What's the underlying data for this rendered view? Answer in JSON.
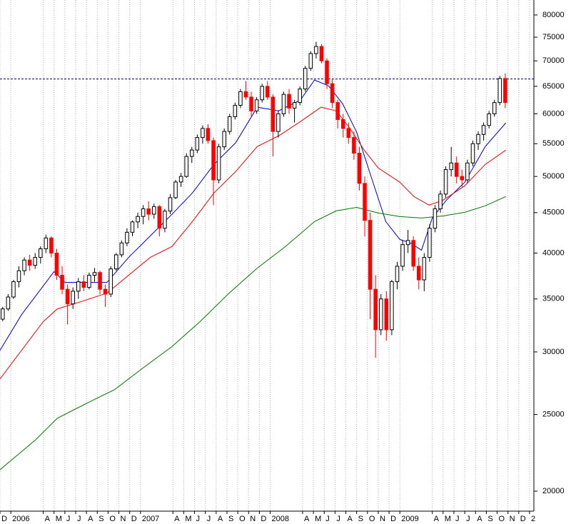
{
  "chart_data": {
    "type": "candlestick",
    "y_scale": "log",
    "grid": true,
    "up_color": "#ffffff",
    "down_color": "#ff0000",
    "hline": 66400,
    "hline_color": "#000080",
    "xlim": [
      0,
      49.4
    ],
    "ylim": [
      18870,
      83570
    ],
    "xticks": [
      {
        "value": 0,
        "label": "D"
      },
      {
        "value": 1,
        "label": "2006"
      },
      {
        "value": 4,
        "label": "A"
      },
      {
        "value": 5,
        "label": "M"
      },
      {
        "value": 6,
        "label": "J"
      },
      {
        "value": 7,
        "label": "J"
      },
      {
        "value": 8,
        "label": "A"
      },
      {
        "value": 9,
        "label": "S"
      },
      {
        "value": 10,
        "label": "O"
      },
      {
        "value": 11,
        "label": "N"
      },
      {
        "value": 12,
        "label": "D"
      },
      {
        "value": 13,
        "label": "2007"
      },
      {
        "value": 16,
        "label": "A"
      },
      {
        "value": 17,
        "label": "M"
      },
      {
        "value": 18,
        "label": "J"
      },
      {
        "value": 19,
        "label": "J"
      },
      {
        "value": 20,
        "label": "A"
      },
      {
        "value": 21,
        "label": "S"
      },
      {
        "value": 22,
        "label": "O"
      },
      {
        "value": 23,
        "label": "N"
      },
      {
        "value": 24,
        "label": "D"
      },
      {
        "value": 25,
        "label": "2008"
      },
      {
        "value": 28,
        "label": "A"
      },
      {
        "value": 29,
        "label": "M"
      },
      {
        "value": 30,
        "label": "J"
      },
      {
        "value": 31,
        "label": "J"
      },
      {
        "value": 32,
        "label": "A"
      },
      {
        "value": 33,
        "label": "S"
      },
      {
        "value": 34,
        "label": "O"
      },
      {
        "value": 35,
        "label": "N"
      },
      {
        "value": 36,
        "label": "D"
      },
      {
        "value": 37,
        "label": "2009"
      },
      {
        "value": 40,
        "label": "A"
      },
      {
        "value": 41,
        "label": "M"
      },
      {
        "value": 42,
        "label": "J"
      },
      {
        "value": 43,
        "label": "J"
      },
      {
        "value": 44,
        "label": "A"
      },
      {
        "value": 45,
        "label": "S"
      },
      {
        "value": 46,
        "label": "O"
      },
      {
        "value": 47,
        "label": "N"
      },
      {
        "value": 48,
        "label": "D"
      },
      {
        "value": 49,
        "label": "2"
      }
    ],
    "yticks": [
      20000,
      25000,
      30000,
      35000,
      40000,
      45000,
      50000,
      55000,
      60000,
      65000,
      70000,
      75000,
      80000
    ],
    "candles": {
      "x": [
        0.25,
        0.75,
        1.25,
        1.75,
        2.25,
        2.75,
        3.25,
        3.75,
        4.25,
        4.75,
        5.25,
        5.75,
        6.25,
        6.75,
        7.25,
        7.75,
        8.25,
        8.75,
        9.25,
        9.75,
        10.25,
        10.75,
        11.25,
        11.75,
        12.25,
        12.75,
        13.25,
        13.75,
        14.25,
        14.75,
        15.25,
        15.75,
        16.25,
        16.75,
        17.25,
        17.75,
        18.25,
        18.75,
        19.25,
        19.75,
        20.25,
        20.75,
        21.25,
        21.75,
        22.25,
        22.75,
        23.25,
        23.75,
        24.25,
        24.75,
        25.25,
        25.75,
        26.25,
        26.75,
        27.25,
        27.75,
        28.25,
        28.75,
        29.25,
        29.75,
        30.25,
        30.75,
        31.25,
        31.75,
        32.25,
        32.75,
        33.25,
        33.75,
        34.25,
        34.75,
        35.25,
        35.75,
        36.25,
        36.75,
        37.25,
        37.75,
        38.25,
        38.75,
        39.25,
        39.75,
        40.25,
        40.75,
        41.25,
        41.75,
        42.25,
        42.75,
        43.25,
        43.75,
        44.25,
        44.75,
        45.25,
        45.75,
        46.25,
        46.75
      ],
      "open": [
        33000,
        34000,
        35200,
        36800,
        38000,
        39200,
        38600,
        39500,
        40500,
        41800,
        40000,
        37500,
        36000,
        34500,
        35800,
        36800,
        36200,
        37500,
        37800,
        36000,
        35500,
        38200,
        39800,
        41200,
        42500,
        43800,
        44500,
        45500,
        44800,
        45800,
        43000,
        45200,
        47000,
        49200,
        50000,
        53000,
        54000,
        56000,
        57500,
        55500,
        49500,
        54500,
        57000,
        59500,
        61500,
        64000,
        63000,
        60500,
        62500,
        65000,
        63000,
        57000,
        60000,
        63500,
        61000,
        62000,
        64500,
        68500,
        71500,
        73000,
        70000,
        65500,
        62000,
        59000,
        57500,
        56000,
        53500,
        49000,
        44000,
        36000,
        32000,
        35000,
        32000,
        36800,
        38500,
        41000,
        41500,
        38500,
        37000,
        39500,
        43000,
        45500,
        47500,
        51000,
        52000,
        50000,
        49500,
        52000,
        55000,
        56500,
        58000,
        60000,
        62000,
        66500
      ],
      "high": [
        34200,
        35500,
        37000,
        38500,
        39500,
        39800,
        40000,
        40800,
        42200,
        42000,
        40500,
        38500,
        36500,
        36200,
        37200,
        37500,
        37800,
        38300,
        38000,
        36500,
        38500,
        40000,
        41500,
        43000,
        44000,
        45000,
        46000,
        46500,
        46200,
        46000,
        45500,
        47500,
        49500,
        50500,
        53500,
        54500,
        56500,
        58000,
        58200,
        56000,
        55000,
        57500,
        60000,
        62000,
        64500,
        66000,
        64000,
        63000,
        65500,
        66000,
        63500,
        60500,
        64000,
        64500,
        62500,
        65000,
        69000,
        72000,
        74000,
        73500,
        70500,
        66500,
        62500,
        60000,
        58500,
        57000,
        54500,
        50000,
        45000,
        37500,
        35500,
        35800,
        37000,
        39000,
        41500,
        42800,
        42000,
        39500,
        40000,
        43500,
        46000,
        48000,
        51500,
        54500,
        53000,
        51000,
        52500,
        55500,
        57000,
        58500,
        60500,
        62500,
        67000,
        67500
      ],
      "low": [
        32800,
        33800,
        35000,
        36200,
        37500,
        38000,
        38200,
        38800,
        40000,
        39500,
        37000,
        35500,
        32500,
        34000,
        35000,
        35800,
        36000,
        36800,
        35500,
        34200,
        35200,
        38000,
        39500,
        40800,
        42000,
        43000,
        43500,
        44000,
        44200,
        42000,
        42500,
        44800,
        46800,
        48500,
        49800,
        52000,
        53500,
        55000,
        55000,
        46000,
        49000,
        54000,
        56500,
        59000,
        61000,
        62500,
        59500,
        60000,
        62000,
        62500,
        53000,
        56000,
        59500,
        60000,
        58500,
        61500,
        64000,
        68000,
        70500,
        69500,
        64500,
        61000,
        57500,
        56000,
        55000,
        52500,
        48000,
        42000,
        33000,
        29500,
        31500,
        31000,
        31500,
        36000,
        38000,
        40000,
        38000,
        36000,
        35800,
        39000,
        42500,
        45000,
        47000,
        50000,
        49000,
        48500,
        49000,
        51500,
        54000,
        55500,
        57500,
        59500,
        61500,
        61000
      ],
      "close": [
        34000,
        35200,
        36800,
        38000,
        39200,
        38600,
        39500,
        40500,
        41800,
        40000,
        37500,
        36000,
        34500,
        35800,
        36800,
        36200,
        37500,
        37800,
        36000,
        35500,
        38200,
        39800,
        41200,
        42500,
        43800,
        44500,
        45500,
        44800,
        45800,
        43000,
        45200,
        47000,
        49200,
        50000,
        53000,
        54000,
        56000,
        57500,
        55500,
        49500,
        54500,
        57000,
        59500,
        61500,
        64000,
        63000,
        60500,
        62500,
        65000,
        63000,
        57000,
        60000,
        63500,
        61000,
        62000,
        64500,
        68500,
        71500,
        73000,
        70000,
        65500,
        62000,
        59000,
        57500,
        56000,
        53500,
        49000,
        44000,
        36000,
        32000,
        35000,
        32000,
        36800,
        38500,
        41000,
        41500,
        38500,
        37000,
        39500,
        43000,
        45500,
        47500,
        51000,
        52000,
        50000,
        49500,
        52000,
        55000,
        56500,
        58000,
        60000,
        62000,
        66500,
        62000
      ]
    },
    "lines": [
      {
        "color": "#0000cc",
        "x": [
          0,
          2,
          4,
          5,
          6,
          7.9,
          9.9,
          11.9,
          13.9,
          15.9,
          17.8,
          19.8,
          21.8,
          23.8,
          25.8,
          27.8,
          29.1,
          30.4,
          31.7,
          33,
          34.4,
          35.7,
          37,
          38,
          39,
          40,
          41.3,
          43,
          44.9,
          46.8
        ],
        "values": [
          30140,
          33440,
          36350,
          37900,
          36730,
          36730,
          36730,
          39500,
          42050,
          44770,
          47650,
          51780,
          55130,
          61160,
          60530,
          62460,
          66200,
          65100,
          61800,
          56870,
          49680,
          43840,
          41620,
          41180,
          40340,
          44300,
          46660,
          49160,
          54540,
          58420
        ]
      },
      {
        "color": "#ee0000",
        "x": [
          0,
          2,
          4,
          5.3,
          7.9,
          9.9,
          11.9,
          13.9,
          15.9,
          17.8,
          19.8,
          21.8,
          23.8,
          25.8,
          27.8,
          29.7,
          31.1,
          32.4,
          33.7,
          35,
          37,
          38.3,
          39.7,
          41,
          43,
          44.9,
          46.8
        ],
        "values": [
          27730,
          30140,
          32760,
          34000,
          34870,
          35600,
          37500,
          39500,
          40760,
          43840,
          47650,
          50700,
          54540,
          56290,
          58660,
          61160,
          60530,
          57460,
          53980,
          51250,
          49160,
          47160,
          46000,
          46660,
          48650,
          51780,
          53980
        ]
      },
      {
        "color": "#007700",
        "x": [
          0,
          3.3,
          5.3,
          7.9,
          10.6,
          13.2,
          15.9,
          18.5,
          21.2,
          23.8,
          26.4,
          29.1,
          31.1,
          33,
          35,
          37,
          39,
          41,
          43,
          44.9,
          46.8
        ],
        "values": [
          21290,
          23230,
          24730,
          25780,
          26880,
          28610,
          30460,
          32760,
          35600,
          38280,
          40760,
          43840,
          45230,
          45690,
          44950,
          44480,
          44300,
          44570,
          45040,
          45900,
          47160
        ]
      }
    ]
  }
}
